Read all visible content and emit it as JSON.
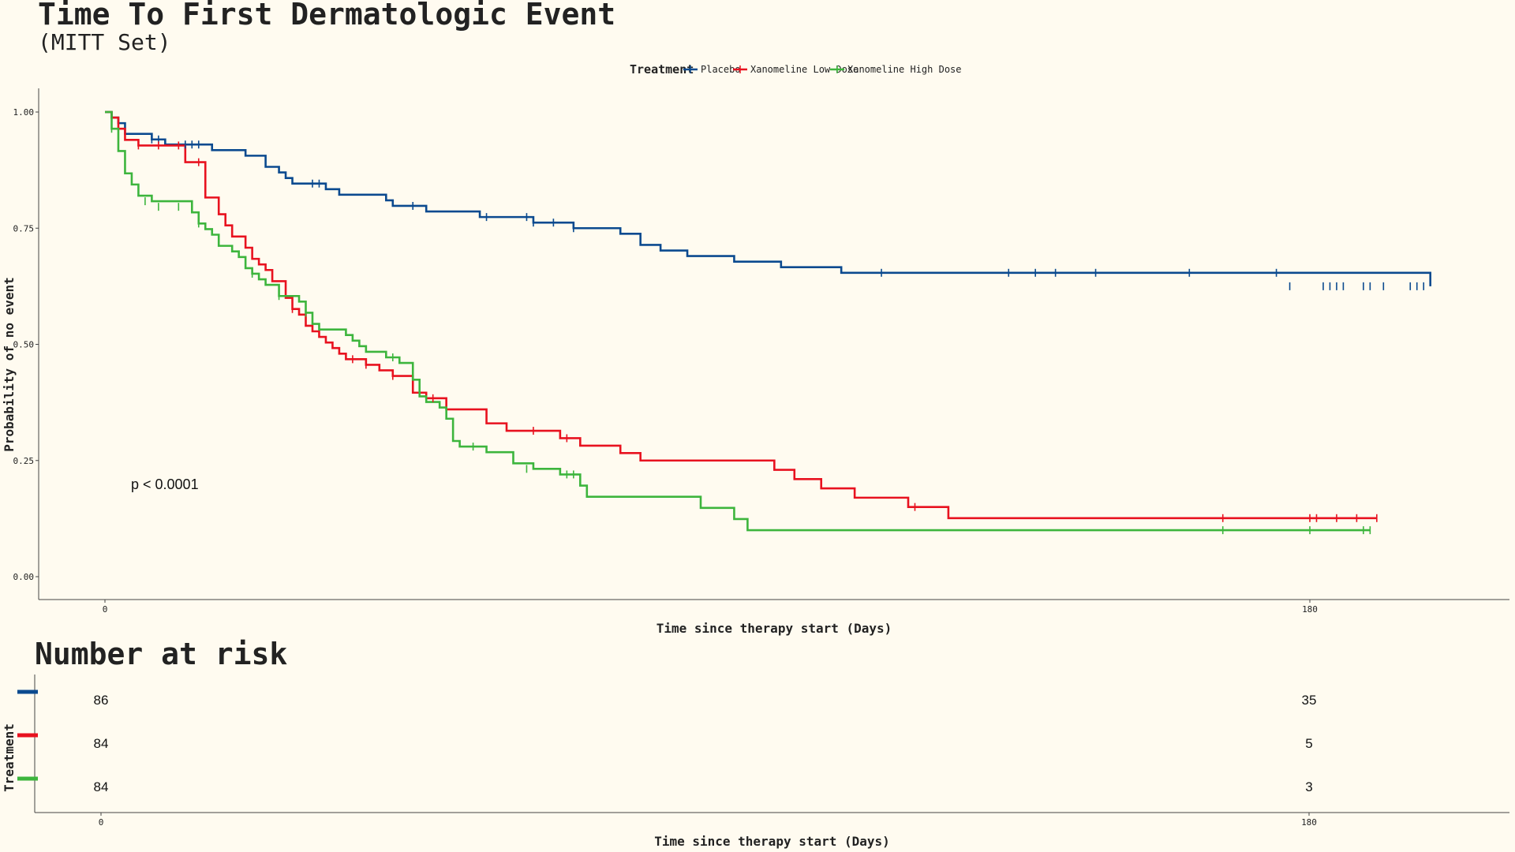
{
  "chart_data": {
    "type": "line",
    "subtype": "kaplan-meier",
    "title": "Time To First Dermatologic Event",
    "subtitle": "(MITT Set)",
    "xlabel": "Time since therapy start (Days)",
    "ylabel": "Probability of no event",
    "xlim": [
      -5,
      210
    ],
    "ylim": [
      -0.05,
      1.05
    ],
    "xticks": [
      0,
      180
    ],
    "xtick_labels": [
      "0",
      "180"
    ],
    "yticks": [
      0,
      0.25,
      0.5,
      0.75,
      1
    ],
    "ytick_labels": [
      "0.00",
      "0.25",
      "0.50",
      "0.75",
      "1.00"
    ],
    "grid": false,
    "legend_title": "Treatment",
    "legend_position": "top",
    "annotation": "p < 0.0001",
    "series": [
      {
        "name": "Placebo",
        "color": "#0b4a8f",
        "steps": [
          [
            0,
            1
          ],
          [
            1,
            0.988
          ],
          [
            2,
            0.976
          ],
          [
            3,
            0.953
          ],
          [
            7,
            0.941
          ],
          [
            9,
            0.93
          ],
          [
            16,
            0.918
          ],
          [
            21,
            0.906
          ],
          [
            24,
            0.882
          ],
          [
            26,
            0.87
          ],
          [
            27,
            0.858
          ],
          [
            28,
            0.846
          ],
          [
            33,
            0.834
          ],
          [
            35,
            0.822
          ],
          [
            42,
            0.81
          ],
          [
            43,
            0.798
          ],
          [
            48,
            0.786
          ],
          [
            56,
            0.774
          ],
          [
            64,
            0.762
          ],
          [
            70,
            0.75
          ],
          [
            77,
            0.738
          ],
          [
            80,
            0.714
          ],
          [
            83,
            0.702
          ],
          [
            87,
            0.69
          ],
          [
            94,
            0.678
          ],
          [
            101,
            0.666
          ],
          [
            110,
            0.654
          ],
          [
            198,
            0.625
          ]
        ],
        "end": 198,
        "censors": [
          [
            7,
            0.941
          ],
          [
            8,
            0.941
          ],
          [
            12,
            0.93
          ],
          [
            13,
            0.93
          ],
          [
            14,
            0.93
          ],
          [
            31,
            0.846
          ],
          [
            32,
            0.846
          ],
          [
            46,
            0.798
          ],
          [
            57,
            0.774
          ],
          [
            63,
            0.774
          ],
          [
            64,
            0.762
          ],
          [
            67,
            0.762
          ],
          [
            70,
            0.75
          ],
          [
            116,
            0.654
          ],
          [
            135,
            0.654
          ],
          [
            139,
            0.654
          ],
          [
            142,
            0.654
          ],
          [
            148,
            0.654
          ],
          [
            162,
            0.654
          ],
          [
            175,
            0.654
          ],
          [
            177,
            0.625
          ],
          [
            182,
            0.625
          ],
          [
            183,
            0.625
          ],
          [
            184,
            0.625
          ],
          [
            185,
            0.625
          ],
          [
            188,
            0.625
          ],
          [
            189,
            0.625
          ],
          [
            191,
            0.625
          ],
          [
            195,
            0.625
          ],
          [
            196,
            0.625
          ],
          [
            197,
            0.625
          ]
        ]
      },
      {
        "name": "Xanomeline Low Dose",
        "color": "#e8121f",
        "steps": [
          [
            0,
            1
          ],
          [
            1,
            0.988
          ],
          [
            2,
            0.964
          ],
          [
            3,
            0.94
          ],
          [
            5,
            0.928
          ],
          [
            12,
            0.892
          ],
          [
            15,
            0.816
          ],
          [
            17,
            0.78
          ],
          [
            18,
            0.756
          ],
          [
            19,
            0.732
          ],
          [
            21,
            0.708
          ],
          [
            22,
            0.684
          ],
          [
            23,
            0.672
          ],
          [
            24,
            0.66
          ],
          [
            25,
            0.636
          ],
          [
            27,
            0.6
          ],
          [
            28,
            0.576
          ],
          [
            29,
            0.564
          ],
          [
            30,
            0.54
          ],
          [
            31,
            0.528
          ],
          [
            32,
            0.516
          ],
          [
            33,
            0.504
          ],
          [
            34,
            0.492
          ],
          [
            35,
            0.48
          ],
          [
            36,
            0.468
          ],
          [
            39,
            0.456
          ],
          [
            41,
            0.444
          ],
          [
            43,
            0.432
          ],
          [
            46,
            0.396
          ],
          [
            48,
            0.384
          ],
          [
            51,
            0.36
          ],
          [
            57,
            0.33
          ],
          [
            60,
            0.314
          ],
          [
            68,
            0.298
          ],
          [
            71,
            0.282
          ],
          [
            77,
            0.266
          ],
          [
            80,
            0.25
          ],
          [
            100,
            0.23
          ],
          [
            103,
            0.21
          ],
          [
            107,
            0.19
          ],
          [
            112,
            0.17
          ],
          [
            120,
            0.15
          ],
          [
            126,
            0.126
          ],
          [
            190,
            0.126
          ]
        ],
        "end": 190,
        "censors": [
          [
            5,
            0.928
          ],
          [
            8,
            0.928
          ],
          [
            11,
            0.928
          ],
          [
            14,
            0.892
          ],
          [
            28,
            0.576
          ],
          [
            37,
            0.468
          ],
          [
            39,
            0.456
          ],
          [
            43,
            0.432
          ],
          [
            49,
            0.384
          ],
          [
            64,
            0.314
          ],
          [
            69,
            0.298
          ],
          [
            121,
            0.15
          ],
          [
            167,
            0.126
          ],
          [
            180,
            0.126
          ],
          [
            181,
            0.126
          ],
          [
            184,
            0.126
          ],
          [
            187,
            0.126
          ],
          [
            190,
            0.126
          ]
        ]
      },
      {
        "name": "Xanomeline High Dose",
        "color": "#3db53d",
        "steps": [
          [
            0,
            1
          ],
          [
            1,
            0.964
          ],
          [
            2,
            0.916
          ],
          [
            3,
            0.868
          ],
          [
            4,
            0.844
          ],
          [
            5,
            0.82
          ],
          [
            7,
            0.808
          ],
          [
            13,
            0.784
          ],
          [
            14,
            0.76
          ],
          [
            15,
            0.748
          ],
          [
            16,
            0.736
          ],
          [
            17,
            0.712
          ],
          [
            19,
            0.7
          ],
          [
            20,
            0.688
          ],
          [
            21,
            0.664
          ],
          [
            22,
            0.652
          ],
          [
            23,
            0.64
          ],
          [
            24,
            0.628
          ],
          [
            26,
            0.604
          ],
          [
            29,
            0.592
          ],
          [
            30,
            0.568
          ],
          [
            31,
            0.544
          ],
          [
            32,
            0.532
          ],
          [
            36,
            0.52
          ],
          [
            37,
            0.508
          ],
          [
            38,
            0.496
          ],
          [
            39,
            0.484
          ],
          [
            42,
            0.472
          ],
          [
            44,
            0.46
          ],
          [
            46,
            0.424
          ],
          [
            47,
            0.388
          ],
          [
            48,
            0.376
          ],
          [
            50,
            0.364
          ],
          [
            51,
            0.34
          ],
          [
            52,
            0.292
          ],
          [
            53,
            0.28
          ],
          [
            57,
            0.268
          ],
          [
            61,
            0.244
          ],
          [
            64,
            0.232
          ],
          [
            68,
            0.22
          ],
          [
            71,
            0.196
          ],
          [
            72,
            0.172
          ],
          [
            89,
            0.148
          ],
          [
            94,
            0.124
          ],
          [
            96,
            0.1
          ],
          [
            189,
            0.1
          ]
        ],
        "end": 189,
        "censors": [
          [
            1,
            0.964
          ],
          [
            6,
            0.808
          ],
          [
            8,
            0.796
          ],
          [
            11,
            0.796
          ],
          [
            14,
            0.76
          ],
          [
            22,
            0.652
          ],
          [
            26,
            0.604
          ],
          [
            30,
            0.568
          ],
          [
            43,
            0.472
          ],
          [
            55,
            0.28
          ],
          [
            63,
            0.232
          ],
          [
            69,
            0.22
          ],
          [
            70,
            0.22
          ],
          [
            167,
            0.1
          ],
          [
            180,
            0.1
          ],
          [
            188,
            0.1
          ],
          [
            189,
            0.1
          ]
        ]
      }
    ]
  },
  "risk_table": {
    "title": "Number at risk",
    "ylabel": "Treatment",
    "xlabel": "Time since therapy start (Days)",
    "times": [
      0,
      180
    ],
    "time_labels": [
      "0",
      "180"
    ],
    "rows": [
      {
        "name": "Placebo",
        "color": "#0b4a8f",
        "values": [
          86,
          35
        ]
      },
      {
        "name": "Xanomeline Low Dose",
        "color": "#e8121f",
        "values": [
          84,
          5
        ]
      },
      {
        "name": "Xanomeline High Dose",
        "color": "#3db53d",
        "values": [
          84,
          3
        ]
      }
    ]
  }
}
